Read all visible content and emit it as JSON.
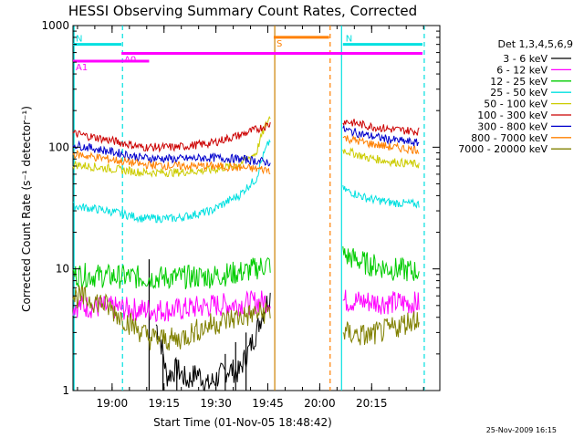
{
  "chart_data": {
    "type": "line",
    "title": "HESSI Observing Summary Count Rates, Corrected",
    "xlabel": "Start Time (01-Nov-05 18:48:42)",
    "ylabel": "Corrected Count Rate (s⁻¹ detector⁻¹)",
    "yscale": "log",
    "ylim": [
      1,
      1000
    ],
    "xlim_minutes_from_start": [
      0,
      106
    ],
    "x_ticks": [
      {
        "label": "19:00",
        "minutes": 11.3
      },
      {
        "label": "19:15",
        "minutes": 26.3
      },
      {
        "label": "19:30",
        "minutes": 41.3
      },
      {
        "label": "19:45",
        "minutes": 56.3
      },
      {
        "label": "20:00",
        "minutes": 71.3
      },
      {
        "label": "20:15",
        "minutes": 86.3
      }
    ],
    "y_ticks": [
      {
        "label": "1",
        "value": 1
      },
      {
        "label": "10",
        "value": 10
      },
      {
        "label": "100",
        "value": 100
      },
      {
        "label": "1000",
        "value": 1000
      }
    ],
    "legend_title": "Det 1,3,4,5,6,9",
    "legend_position": "right",
    "gap": [
      57,
      78
    ],
    "series": [
      {
        "name": "3 - 6 keV",
        "color": "#000000",
        "segments": [
          [
            [
              24,
              3.5
            ],
            [
              27,
              1.3
            ],
            [
              30,
              1.5
            ],
            [
              33,
              1.2
            ],
            [
              36,
              1.4
            ],
            [
              39,
              1.1
            ],
            [
              42,
              1.3
            ],
            [
              45,
              1.5
            ],
            [
              48,
              1.4
            ],
            [
              51,
              2.2
            ],
            [
              53,
              3
            ],
            [
              55,
              4.5
            ],
            [
              57,
              6
            ]
          ]
        ],
        "spikes": [
          [
            22,
            12
          ],
          [
            26,
            2
          ],
          [
            30,
            1.8
          ],
          [
            44,
            2
          ],
          [
            47,
            2.5
          ],
          [
            50,
            3
          ]
        ]
      },
      {
        "name": "6 - 12 keV",
        "color": "#ff00ff",
        "segments": [
          [
            [
              0,
              5
            ],
            [
              10,
              4.8
            ],
            [
              20,
              4.6
            ],
            [
              30,
              4.6
            ],
            [
              40,
              5
            ],
            [
              50,
              5.2
            ],
            [
              57,
              5.5
            ]
          ],
          [
            [
              78,
              5.5
            ],
            [
              90,
              5.3
            ],
            [
              100,
              5.2
            ]
          ]
        ]
      },
      {
        "name": "12 - 25 keV",
        "color": "#00cc00",
        "segments": [
          [
            [
              0,
              9
            ],
            [
              10,
              8.7
            ],
            [
              20,
              8.5
            ],
            [
              30,
              8.5
            ],
            [
              40,
              8.7
            ],
            [
              50,
              9.5
            ],
            [
              57,
              11
            ]
          ],
          [
            [
              78,
              13
            ],
            [
              85,
              11
            ],
            [
              92,
              10
            ],
            [
              100,
              9.5
            ]
          ]
        ]
      },
      {
        "name": "25 - 50 keV",
        "color": "#00e0e0",
        "segments": [
          [
            [
              0,
              33
            ],
            [
              10,
              30
            ],
            [
              20,
              26
            ],
            [
              30,
              26
            ],
            [
              40,
              30
            ],
            [
              48,
              40
            ],
            [
              53,
              55
            ],
            [
              57,
              115
            ]
          ],
          [
            [
              78,
              45
            ],
            [
              85,
              38
            ],
            [
              92,
              35
            ],
            [
              100,
              34
            ]
          ]
        ]
      },
      {
        "name": "50 - 100 keV",
        "color": "#cccc00",
        "segments": [
          [
            [
              0,
              72
            ],
            [
              10,
              67
            ],
            [
              20,
              62
            ],
            [
              30,
              62
            ],
            [
              40,
              65
            ],
            [
              48,
              72
            ],
            [
              53,
              90
            ],
            [
              57,
              180
            ]
          ],
          [
            [
              78,
              95
            ],
            [
              85,
              82
            ],
            [
              92,
              76
            ],
            [
              100,
              72
            ]
          ]
        ]
      },
      {
        "name": "100 - 300 keV",
        "color": "#cc0000",
        "segments": [
          [
            [
              0,
              130
            ],
            [
              10,
              115
            ],
            [
              20,
              100
            ],
            [
              30,
              100
            ],
            [
              40,
              108
            ],
            [
              48,
              125
            ],
            [
              53,
              140
            ],
            [
              57,
              155
            ]
          ],
          [
            [
              78,
              165
            ],
            [
              85,
              150
            ],
            [
              92,
              140
            ],
            [
              100,
              135
            ]
          ]
        ]
      },
      {
        "name": "300 - 800 keV",
        "color": "#0000cc",
        "segments": [
          [
            [
              0,
              105
            ],
            [
              10,
              93
            ],
            [
              20,
              82
            ],
            [
              30,
              80
            ],
            [
              40,
              82
            ],
            [
              48,
              80
            ],
            [
              57,
              75
            ]
          ],
          [
            [
              78,
              140
            ],
            [
              85,
              125
            ],
            [
              92,
              115
            ],
            [
              100,
              108
            ]
          ]
        ]
      },
      {
        "name": "800 - 7000 keV",
        "color": "#ff8000",
        "segments": [
          [
            [
              0,
              88
            ],
            [
              10,
              80
            ],
            [
              20,
              72
            ],
            [
              30,
              70
            ],
            [
              40,
              70
            ],
            [
              48,
              68
            ],
            [
              57,
              65
            ]
          ],
          [
            [
              78,
              120
            ],
            [
              85,
              108
            ],
            [
              92,
              100
            ],
            [
              100,
              95
            ]
          ]
        ]
      },
      {
        "name": "7000 - 20000 keV",
        "color": "#808000",
        "segments": [
          [
            [
              0,
              6
            ],
            [
              8,
              5.3
            ],
            [
              14,
              4
            ],
            [
              18,
              3.3
            ],
            [
              22,
              2.7
            ],
            [
              30,
              2.6
            ],
            [
              40,
              3.5
            ],
            [
              48,
              4
            ],
            [
              57,
              4.5
            ]
          ],
          [
            [
              78,
              3
            ],
            [
              85,
              2.8
            ],
            [
              92,
              3.2
            ],
            [
              100,
              4
            ]
          ]
        ]
      }
    ],
    "annotations": [
      {
        "label": "N",
        "color": "#00e0e0",
        "y": 700,
        "x_start": 0,
        "x_end": 14
      },
      {
        "label": "N",
        "color": "#00e0e0",
        "y": 700,
        "x_start": 78,
        "x_end": 101
      },
      {
        "label": "A0",
        "color": "#ff00ff",
        "y": 590,
        "x_start": 14,
        "x_end": 101
      },
      {
        "label": "A1",
        "color": "#ff00ff",
        "y": 510,
        "x_start": 0,
        "x_end": 22
      },
      {
        "label": "S",
        "color": "#ff8000",
        "y": 800,
        "x_start": 58,
        "x_end": 74
      }
    ],
    "vertical_lines": [
      {
        "x": 0.3,
        "color": "#00e0e0",
        "style": "solid"
      },
      {
        "x": 14.3,
        "color": "#00e0e0",
        "style": "dashed"
      },
      {
        "x": 58.3,
        "color": "#cc8000",
        "style": "solid"
      },
      {
        "x": 74.3,
        "color": "#ff8000",
        "style": "dashed"
      },
      {
        "x": 77.6,
        "color": "#00e0e0",
        "style": "solid"
      },
      {
        "x": 101.5,
        "color": "#00e0e0",
        "style": "dashed"
      }
    ]
  },
  "footer": {
    "timestamp": "25-Nov-2009 16:15"
  }
}
